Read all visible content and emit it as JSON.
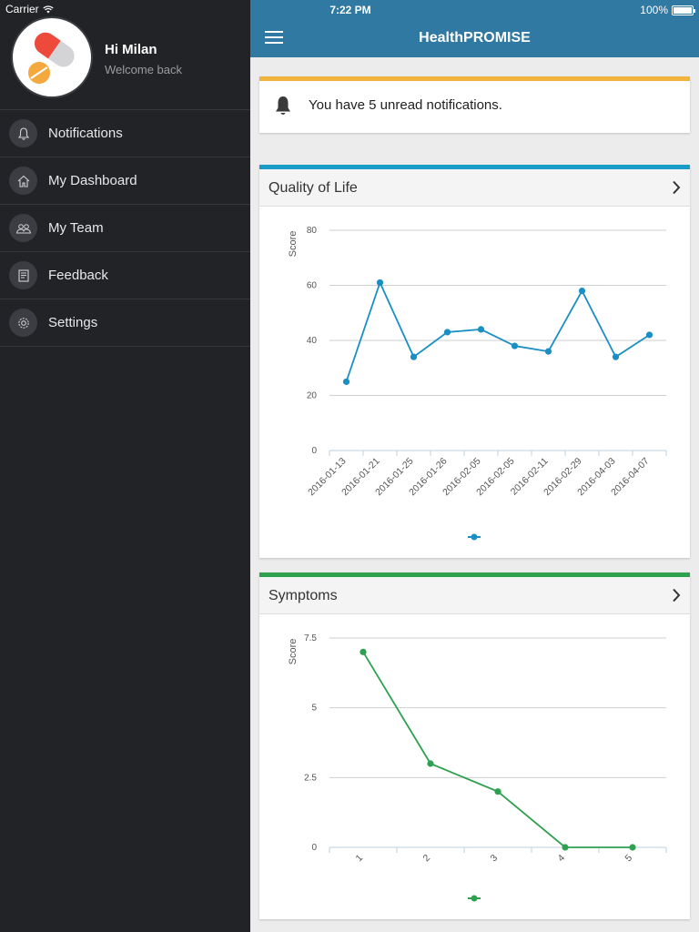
{
  "status": {
    "carrier": "Carrier",
    "time": "7:22 PM",
    "battery": "100%"
  },
  "sidebar": {
    "greeting": "Hi Milan",
    "subtitle": "Welcome back",
    "items": [
      {
        "label": "Notifications",
        "icon": "bell-icon"
      },
      {
        "label": "My Dashboard",
        "icon": "home-icon"
      },
      {
        "label": "My Team",
        "icon": "team-icon"
      },
      {
        "label": "Feedback",
        "icon": "document-icon"
      },
      {
        "label": "Settings",
        "icon": "gear-icon"
      }
    ]
  },
  "navbar": {
    "title": "HealthPROMISE"
  },
  "notification": {
    "text": "You have 5 unread notifications."
  },
  "colors": {
    "navbar": "#2f79a3",
    "notification_accent": "#f0b33b",
    "qol_accent": "#1a9ac6",
    "symptoms_accent": "#2ea150",
    "sidebar_bg": "#212327"
  },
  "panels": {
    "quality_of_life": {
      "title": "Quality of Life"
    },
    "symptoms": {
      "title": "Symptoms"
    }
  },
  "chart_data": [
    {
      "type": "line",
      "title": "Quality of Life",
      "ylabel": "Score",
      "categories": [
        "2016-01-13",
        "2016-01-21",
        "2016-01-25",
        "2016-01-26",
        "2016-02-05",
        "2016-02-05",
        "2016-02-11",
        "2016-02-29",
        "2016-04-03",
        "2016-04-07"
      ],
      "series": [
        {
          "values": [
            25,
            61,
            34,
            43,
            44,
            38,
            36,
            58,
            34,
            42
          ],
          "color": "#1a8fc4"
        }
      ],
      "ylim": [
        0,
        80
      ],
      "yticks": [
        "0",
        "20",
        "40",
        "60",
        "80"
      ],
      "grid": true,
      "legend": "bottom-center"
    },
    {
      "type": "line",
      "title": "Symptoms",
      "ylabel": "Score",
      "categories": [
        "1",
        "2",
        "3",
        "4",
        "5"
      ],
      "series": [
        {
          "values": [
            7,
            3,
            2,
            0,
            0
          ],
          "color": "#2ea150"
        }
      ],
      "ylim": [
        0,
        7.5
      ],
      "yticks": [
        "0",
        "2.5",
        "5",
        "7.5"
      ],
      "grid": true,
      "legend": "bottom-center"
    }
  ]
}
